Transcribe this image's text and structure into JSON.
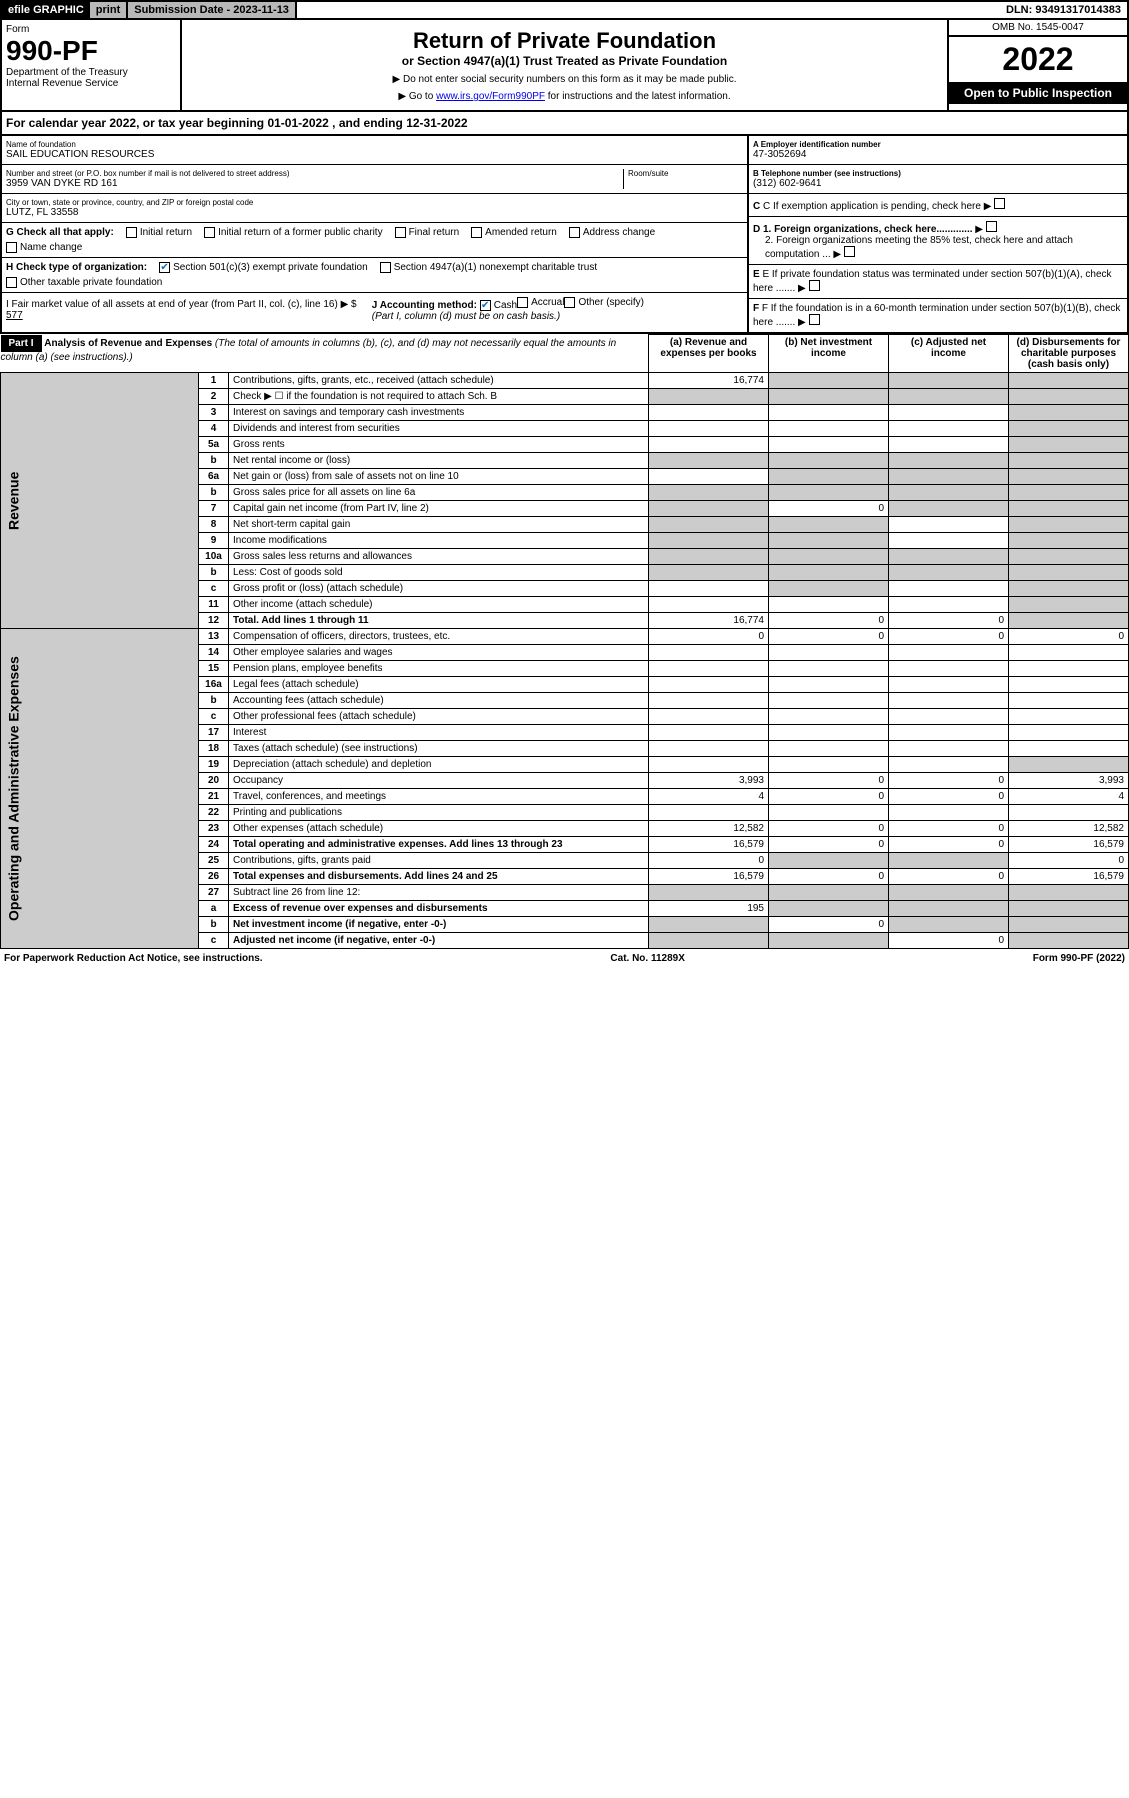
{
  "topbar": {
    "efile": "efile GRAPHIC",
    "print": "print",
    "subdate_label": "Submission Date - 2023-11-13",
    "dln": "DLN: 93491317014383"
  },
  "header": {
    "form_label": "Form",
    "form_num": "990-PF",
    "dept": "Department of the Treasury",
    "irs": "Internal Revenue Service",
    "title": "Return of Private Foundation",
    "subtitle": "or Section 4947(a)(1) Trust Treated as Private Foundation",
    "instr1": "▶ Do not enter social security numbers on this form as it may be made public.",
    "instr2_pre": "▶ Go to ",
    "instr2_link": "www.irs.gov/Form990PF",
    "instr2_post": " for instructions and the latest information.",
    "omb": "OMB No. 1545-0047",
    "year": "2022",
    "open": "Open to Public Inspection"
  },
  "calyear": {
    "text_pre": "For calendar year 2022, or tax year beginning ",
    "begin": "01-01-2022",
    "text_mid": " , and ending ",
    "end": "12-31-2022"
  },
  "info": {
    "name_label": "Name of foundation",
    "name": "SAIL EDUCATION RESOURCES",
    "addr_label": "Number and street (or P.O. box number if mail is not delivered to street address)",
    "addr": "3959 VAN DYKE RD 161",
    "room_label": "Room/suite",
    "city_label": "City or town, state or province, country, and ZIP or foreign postal code",
    "city": "LUTZ, FL  33558",
    "ein_label": "A Employer identification number",
    "ein": "47-3052694",
    "tel_label": "B Telephone number (see instructions)",
    "tel": "(312) 602-9641",
    "c": "C If exemption application is pending, check here",
    "d1": "D 1. Foreign organizations, check here.............",
    "d2": "2. Foreign organizations meeting the 85% test, check here and attach computation ...",
    "e": "E If private foundation status was terminated under section 507(b)(1)(A), check here .......",
    "f": "F If the foundation is in a 60-month termination under section 507(b)(1)(B), check here .......",
    "g_label": "G Check all that apply:",
    "g_opts": [
      "Initial return",
      "Initial return of a former public charity",
      "Final return",
      "Amended return",
      "Address change",
      "Name change"
    ],
    "h_label": "H Check type of organization:",
    "h_opts": [
      "Section 501(c)(3) exempt private foundation",
      "Section 4947(a)(1) nonexempt charitable trust",
      "Other taxable private foundation"
    ],
    "h_checked": 0,
    "i_label": "I Fair market value of all assets at end of year (from Part II, col. (c), line 16) ▶ $",
    "i_val": "577",
    "j_label": "J Accounting method:",
    "j_opts": [
      "Cash",
      "Accrual",
      "Other (specify)"
    ],
    "j_checked": 0,
    "j_note": "(Part I, column (d) must be on cash basis.)"
  },
  "part1": {
    "label": "Part I",
    "title": "Analysis of Revenue and Expenses",
    "title_note": "(The total of amounts in columns (b), (c), and (d) may not necessarily equal the amounts in column (a) (see instructions).)",
    "col_a": "(a) Revenue and expenses per books",
    "col_b": "(b) Net investment income",
    "col_c": "(c) Adjusted net income",
    "col_d": "(d) Disbursements for charitable purposes (cash basis only)",
    "revenue_label": "Revenue",
    "expenses_label": "Operating and Administrative Expenses",
    "rows": [
      {
        "n": "1",
        "d": "Contributions, gifts, grants, etc., received (attach schedule)",
        "a": "16,774",
        "b": "",
        "c": "",
        "dd": "",
        "shade_b": true,
        "shade_c": true,
        "shade_d": true
      },
      {
        "n": "2",
        "d": "Check ▶ ☐ if the foundation is not required to attach Sch. B",
        "a": "",
        "shade_a": true,
        "shade_b": true,
        "shade_c": true,
        "shade_d": true
      },
      {
        "n": "3",
        "d": "Interest on savings and temporary cash investments",
        "a": "",
        "b": "",
        "c": "",
        "shade_d": true
      },
      {
        "n": "4",
        "d": "Dividends and interest from securities",
        "a": "",
        "b": "",
        "c": "",
        "shade_d": true
      },
      {
        "n": "5a",
        "d": "Gross rents",
        "a": "",
        "b": "",
        "c": "",
        "shade_d": true
      },
      {
        "n": "b",
        "d": "Net rental income or (loss)",
        "shade_a": true,
        "shade_b": true,
        "shade_c": true,
        "shade_d": true
      },
      {
        "n": "6a",
        "d": "Net gain or (loss) from sale of assets not on line 10",
        "a": "",
        "shade_b": true,
        "shade_c": true,
        "shade_d": true
      },
      {
        "n": "b",
        "d": "Gross sales price for all assets on line 6a",
        "shade_a": true,
        "shade_b": true,
        "shade_c": true,
        "shade_d": true
      },
      {
        "n": "7",
        "d": "Capital gain net income (from Part IV, line 2)",
        "shade_a": true,
        "b": "0",
        "shade_c": true,
        "shade_d": true
      },
      {
        "n": "8",
        "d": "Net short-term capital gain",
        "shade_a": true,
        "shade_b": true,
        "c": "",
        "shade_d": true
      },
      {
        "n": "9",
        "d": "Income modifications",
        "shade_a": true,
        "shade_b": true,
        "c": "",
        "shade_d": true
      },
      {
        "n": "10a",
        "d": "Gross sales less returns and allowances",
        "shade_a": true,
        "shade_b": true,
        "shade_c": true,
        "shade_d": true
      },
      {
        "n": "b",
        "d": "Less: Cost of goods sold",
        "shade_a": true,
        "shade_b": true,
        "shade_c": true,
        "shade_d": true
      },
      {
        "n": "c",
        "d": "Gross profit or (loss) (attach schedule)",
        "a": "",
        "shade_b": true,
        "c": "",
        "shade_d": true
      },
      {
        "n": "11",
        "d": "Other income (attach schedule)",
        "a": "",
        "b": "",
        "c": "",
        "shade_d": true
      },
      {
        "n": "12",
        "d": "Total. Add lines 1 through 11",
        "bold": true,
        "a": "16,774",
        "b": "0",
        "c": "0",
        "shade_d": true
      },
      {
        "n": "13",
        "d": "Compensation of officers, directors, trustees, etc.",
        "a": "0",
        "b": "0",
        "c": "0",
        "dd": "0"
      },
      {
        "n": "14",
        "d": "Other employee salaries and wages",
        "a": "",
        "b": "",
        "c": "",
        "dd": ""
      },
      {
        "n": "15",
        "d": "Pension plans, employee benefits",
        "a": "",
        "b": "",
        "c": "",
        "dd": ""
      },
      {
        "n": "16a",
        "d": "Legal fees (attach schedule)",
        "a": "",
        "b": "",
        "c": "",
        "dd": ""
      },
      {
        "n": "b",
        "d": "Accounting fees (attach schedule)",
        "a": "",
        "b": "",
        "c": "",
        "dd": ""
      },
      {
        "n": "c",
        "d": "Other professional fees (attach schedule)",
        "a": "",
        "b": "",
        "c": "",
        "dd": ""
      },
      {
        "n": "17",
        "d": "Interest",
        "a": "",
        "b": "",
        "c": "",
        "dd": ""
      },
      {
        "n": "18",
        "d": "Taxes (attach schedule) (see instructions)",
        "a": "",
        "b": "",
        "c": "",
        "dd": ""
      },
      {
        "n": "19",
        "d": "Depreciation (attach schedule) and depletion",
        "a": "",
        "b": "",
        "c": "",
        "shade_d": true
      },
      {
        "n": "20",
        "d": "Occupancy",
        "a": "3,993",
        "b": "0",
        "c": "0",
        "dd": "3,993"
      },
      {
        "n": "21",
        "d": "Travel, conferences, and meetings",
        "a": "4",
        "b": "0",
        "c": "0",
        "dd": "4"
      },
      {
        "n": "22",
        "d": "Printing and publications",
        "a": "",
        "b": "",
        "c": "",
        "dd": ""
      },
      {
        "n": "23",
        "d": "Other expenses (attach schedule)",
        "a": "12,582",
        "b": "0",
        "c": "0",
        "dd": "12,582"
      },
      {
        "n": "24",
        "d": "Total operating and administrative expenses. Add lines 13 through 23",
        "bold": true,
        "a": "16,579",
        "b": "0",
        "c": "0",
        "dd": "16,579"
      },
      {
        "n": "25",
        "d": "Contributions, gifts, grants paid",
        "a": "0",
        "shade_b": true,
        "shade_c": true,
        "dd": "0"
      },
      {
        "n": "26",
        "d": "Total expenses and disbursements. Add lines 24 and 25",
        "bold": true,
        "a": "16,579",
        "b": "0",
        "c": "0",
        "dd": "16,579"
      },
      {
        "n": "27",
        "d": "Subtract line 26 from line 12:",
        "shade_a": true,
        "shade_b": true,
        "shade_c": true,
        "shade_d": true
      },
      {
        "n": "a",
        "d": "Excess of revenue over expenses and disbursements",
        "bold": true,
        "a": "195",
        "shade_b": true,
        "shade_c": true,
        "shade_d": true
      },
      {
        "n": "b",
        "d": "Net investment income (if negative, enter -0-)",
        "bold": true,
        "shade_a": true,
        "b": "0",
        "shade_c": true,
        "shade_d": true
      },
      {
        "n": "c",
        "d": "Adjusted net income (if negative, enter -0-)",
        "bold": true,
        "shade_a": true,
        "shade_b": true,
        "c": "0",
        "shade_d": true
      }
    ]
  },
  "footer": {
    "left": "For Paperwork Reduction Act Notice, see instructions.",
    "mid": "Cat. No. 11289X",
    "right": "Form 990-PF (2022)"
  }
}
